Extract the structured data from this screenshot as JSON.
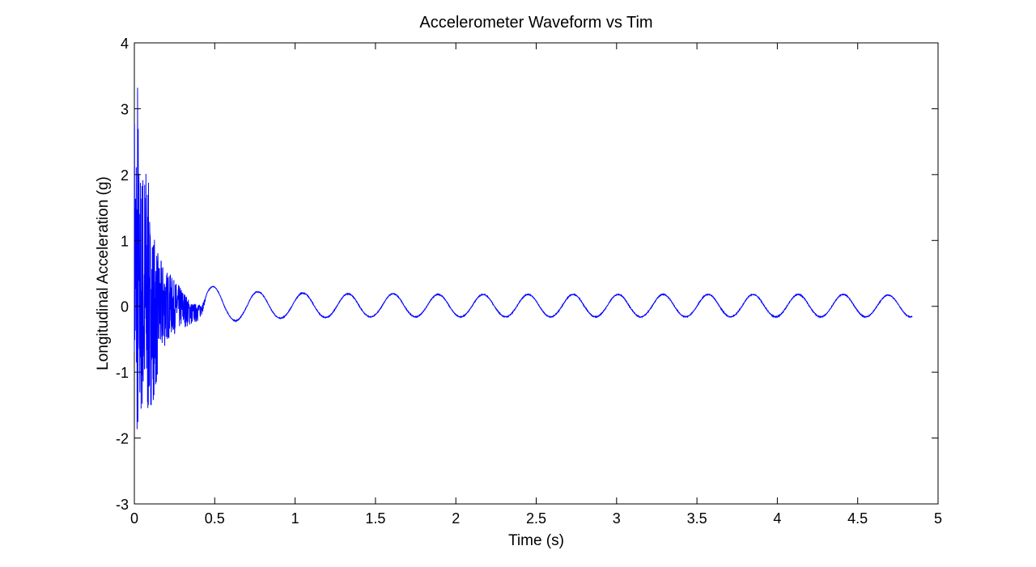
{
  "chart_data": {
    "type": "line",
    "title": "Accelerometer Waveform vs Tim",
    "xlabel": "Time (s)",
    "ylabel": "Longitudinal Acceleration (g)",
    "xlim": [
      0,
      5
    ],
    "ylim": [
      -3,
      4
    ],
    "xticks": [
      0,
      0.5,
      1,
      1.5,
      2,
      2.5,
      3,
      3.5,
      4,
      4.5,
      5
    ],
    "xtick_labels": [
      "0",
      "0.5",
      "1",
      "1.5",
      "2",
      "2.5",
      "3",
      "3.5",
      "4",
      "4.5",
      "5"
    ],
    "yticks": [
      -3,
      -2,
      -1,
      0,
      1,
      2,
      3,
      4
    ],
    "ytick_labels": [
      "-3",
      "-2",
      "-1",
      "0",
      "1",
      "2",
      "3",
      "4"
    ],
    "grid": false,
    "legend": "none",
    "series": [
      {
        "color": "#0000ff",
        "sample_interval_s": 0.001,
        "x_start": 0,
        "x_end": 4.84,
        "oscillation_period_s": 0.28,
        "steady_amplitude_g": 0.18,
        "envelope": {
          "t": [
            0,
            0.01,
            0.02,
            0.03,
            0.05,
            0.08,
            0.1,
            0.13,
            0.15,
            0.2,
            0.25,
            0.3,
            0.35,
            0.4
          ],
          "max": [
            3.3,
            3.2,
            3.95,
            2.1,
            2.3,
            2.35,
            1.3,
            1.05,
            0.75,
            0.5,
            0.35,
            0.3,
            0.1,
            0.05
          ],
          "min": [
            -0.7,
            -1.3,
            -2.4,
            -1.9,
            -1.6,
            -1.85,
            -1.5,
            -1.35,
            -1.0,
            -0.6,
            -0.45,
            -0.3,
            -0.25,
            -0.2
          ]
        },
        "peaks_after_transient": {
          "t": [
            0.49,
            0.77,
            1.05,
            1.33,
            1.61,
            1.89,
            2.17,
            2.45,
            2.73,
            3.01,
            3.29,
            3.57,
            3.85,
            4.13,
            4.41,
            4.69
          ],
          "y": [
            0.3,
            0.22,
            0.2,
            0.19,
            0.19,
            0.18,
            0.18,
            0.18,
            0.18,
            0.18,
            0.18,
            0.18,
            0.18,
            0.18,
            0.18,
            0.17
          ]
        },
        "troughs_after_transient": {
          "t": [
            0.63,
            0.91,
            1.19,
            1.47,
            1.75,
            2.03,
            2.31,
            2.59,
            2.87,
            3.15,
            3.43,
            3.71,
            3.99,
            4.27,
            4.55
          ],
          "y": [
            -0.22,
            -0.18,
            -0.17,
            -0.16,
            -0.16,
            -0.16,
            -0.16,
            -0.16,
            -0.16,
            -0.16,
            -0.16,
            -0.16,
            -0.16,
            -0.16,
            -0.16
          ]
        },
        "end_value_g": -0.1
      }
    ]
  }
}
